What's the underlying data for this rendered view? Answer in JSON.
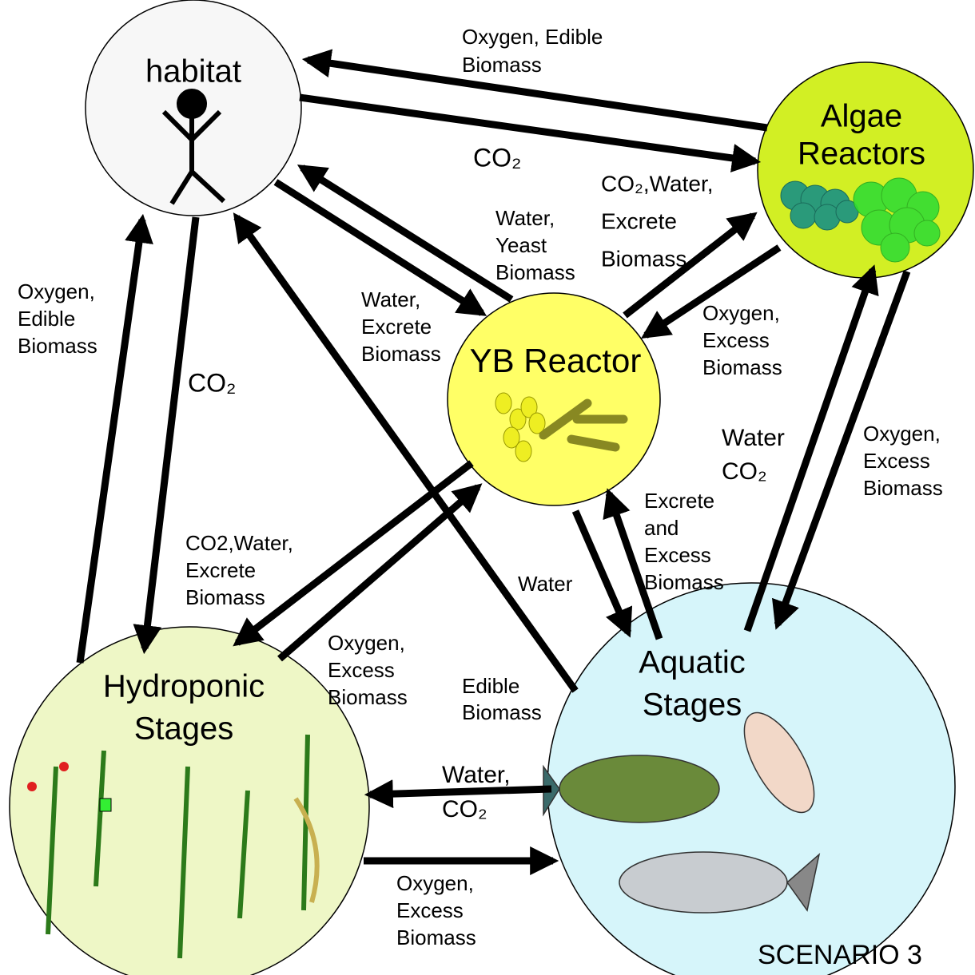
{
  "nodes": [
    {
      "label_lines": [
        "habitat"
      ]
    },
    {
      "label_lines": [
        "Algae",
        "Reactors"
      ]
    },
    {
      "label_lines": [
        "YB Reactor"
      ]
    },
    {
      "label_lines": [
        "Hydroponic",
        "Stages"
      ]
    },
    {
      "label_lines": [
        "Aquatic",
        "Stages"
      ]
    }
  ],
  "flow_labels": [
    {
      "lines": [
        "Oxygen, Edible",
        "Biomass"
      ]
    },
    {
      "lines": [
        "CO₂"
      ]
    },
    {
      "lines": [
        "CO₂,Water,",
        "Excrete",
        "Biomass"
      ]
    },
    {
      "lines": [
        "Water,",
        "Yeast",
        "Biomass"
      ]
    },
    {
      "lines": [
        "Water,",
        "Excrete",
        "Biomass"
      ]
    },
    {
      "lines": [
        "Oxygen,",
        "Excess",
        "Biomass"
      ]
    },
    {
      "lines": [
        "Oxygen,",
        "Edible",
        "Biomass"
      ]
    },
    {
      "lines": [
        "CO₂"
      ]
    },
    {
      "lines": [
        "Water",
        "CO₂"
      ]
    },
    {
      "lines": [
        "Oxygen,",
        "Excess",
        "Biomass"
      ]
    },
    {
      "lines": [
        "Excrete",
        "and",
        "Excess",
        "Biomass"
      ]
    },
    {
      "lines": [
        "CO2,Water,",
        "Excrete",
        "Biomass"
      ]
    },
    {
      "lines": [
        "Water"
      ]
    },
    {
      "lines": [
        "Oxygen,",
        "Excess",
        "Biomass"
      ]
    },
    {
      "lines": [
        "Edible",
        "Biomass"
      ]
    },
    {
      "lines": [
        "Water,",
        "CO₂"
      ]
    },
    {
      "lines": [
        "Oxygen,",
        "Excess",
        "Biomass"
      ]
    }
  ],
  "footer": "SCENARIO 3"
}
